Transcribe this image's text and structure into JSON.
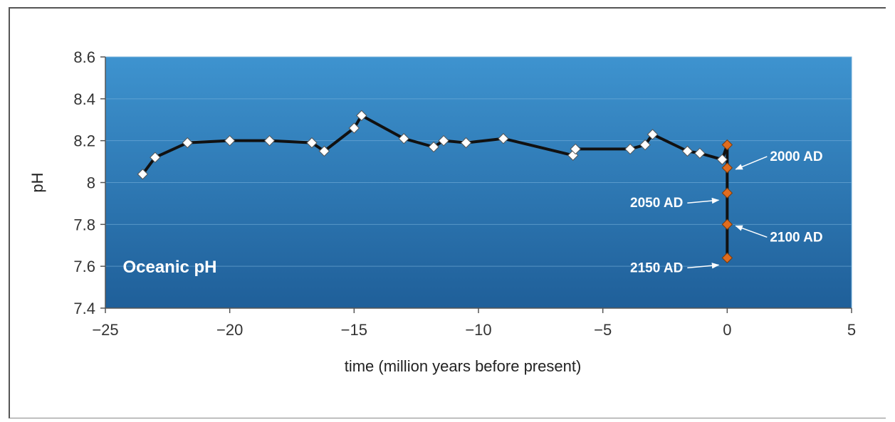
{
  "chart_data": {
    "type": "line",
    "title": "",
    "panel_label": "Oceanic pH",
    "xlabel": "time (million years before present)",
    "ylabel": "pH",
    "xlim": [
      -25,
      5
    ],
    "ylim": [
      7.4,
      8.6
    ],
    "x_ticks": [
      -25,
      -20,
      -15,
      -10,
      -5,
      0,
      5
    ],
    "x_tick_labels": [
      "−25",
      "−20",
      "−15",
      "−10",
      "−5",
      "0",
      "5"
    ],
    "y_ticks": [
      7.4,
      7.6,
      7.8,
      8.0,
      8.2,
      8.4,
      8.6
    ],
    "y_tick_labels": [
      "7.4",
      "7.6",
      "7.8",
      "8",
      "8.2",
      "8.4",
      "8.6"
    ],
    "grid": "horizontal",
    "colors": {
      "plot_bg_top": "#3e93cf",
      "plot_bg_bottom": "#1f5f99",
      "line": "#111111",
      "historical_marker": "#ffffff",
      "projection_marker": "#e06c1f"
    },
    "series": [
      {
        "marker": "white-diamond",
        "points": [
          {
            "x": -23.5,
            "y": 8.04
          },
          {
            "x": -23.0,
            "y": 8.12
          },
          {
            "x": -21.7,
            "y": 8.19
          },
          {
            "x": -20.0,
            "y": 8.2
          },
          {
            "x": -18.4,
            "y": 8.2
          },
          {
            "x": -16.7,
            "y": 8.19
          },
          {
            "x": -16.2,
            "y": 8.15
          },
          {
            "x": -15.0,
            "y": 8.26
          },
          {
            "x": -14.7,
            "y": 8.32
          },
          {
            "x": -13.0,
            "y": 8.21
          },
          {
            "x": -11.8,
            "y": 8.17
          },
          {
            "x": -11.4,
            "y": 8.2
          },
          {
            "x": -10.5,
            "y": 8.19
          },
          {
            "x": -9.0,
            "y": 8.21
          },
          {
            "x": -6.2,
            "y": 8.13
          },
          {
            "x": -6.1,
            "y": 8.16
          },
          {
            "x": -3.9,
            "y": 8.16
          },
          {
            "x": -3.3,
            "y": 8.18
          },
          {
            "x": -3.0,
            "y": 8.23
          },
          {
            "x": -1.6,
            "y": 8.15
          },
          {
            "x": -1.1,
            "y": 8.14
          },
          {
            "x": -0.2,
            "y": 8.11
          }
        ]
      },
      {
        "marker": "orange-diamond",
        "points": [
          {
            "x": 0,
            "y": 8.18
          },
          {
            "x": 0,
            "y": 8.07
          },
          {
            "x": 0,
            "y": 7.95
          },
          {
            "x": 0,
            "y": 7.8
          },
          {
            "x": 0,
            "y": 7.64
          }
        ]
      }
    ],
    "annotations": [
      {
        "text": "2000 AD",
        "x": 0,
        "y": 8.07,
        "side": "right"
      },
      {
        "text": "2050 AD",
        "x": 0,
        "y": 7.95,
        "side": "left"
      },
      {
        "text": "2100 AD",
        "x": 0,
        "y": 7.8,
        "side": "right"
      },
      {
        "text": "2150 AD",
        "x": 0,
        "y": 7.64,
        "side": "left"
      }
    ]
  }
}
